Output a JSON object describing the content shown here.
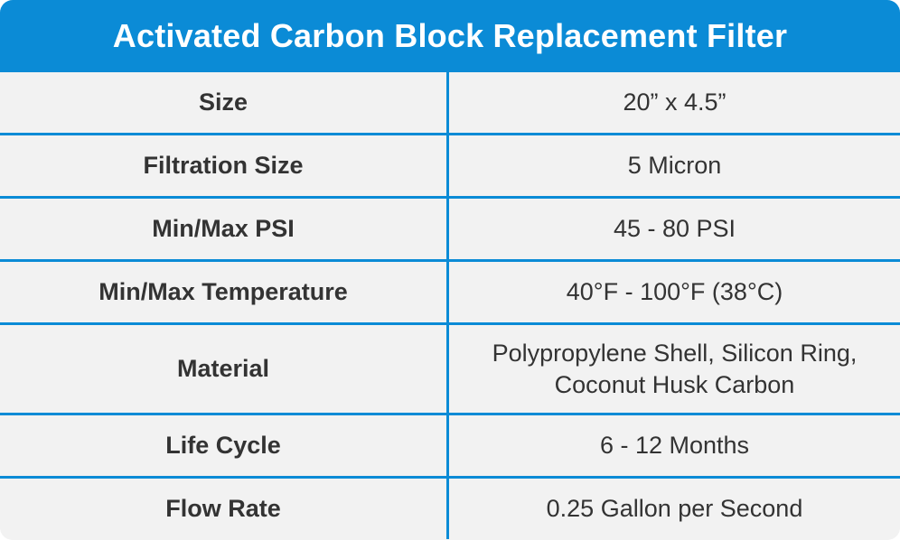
{
  "title": "Activated Carbon Block Replacement Filter",
  "rows": [
    {
      "label": "Size",
      "value": "20” x 4.5”"
    },
    {
      "label": "Filtration Size",
      "value": "5 Micron"
    },
    {
      "label": "Min/Max PSI",
      "value": "45 - 80 PSI"
    },
    {
      "label": "Min/Max Temperature",
      "value": "40°F - 100°F (38°C)"
    },
    {
      "label": "Material",
      "value": "Polypropylene Shell, Silicon Ring, Coconut Husk Carbon"
    },
    {
      "label": "Life Cycle",
      "value": "6 - 12 Months"
    },
    {
      "label": "Flow Rate",
      "value": "0.25 Gallon per Second"
    }
  ],
  "colors": {
    "accent": "#0b8bd6",
    "background": "#f2f2f2",
    "text": "#333333",
    "header_text": "#ffffff"
  }
}
